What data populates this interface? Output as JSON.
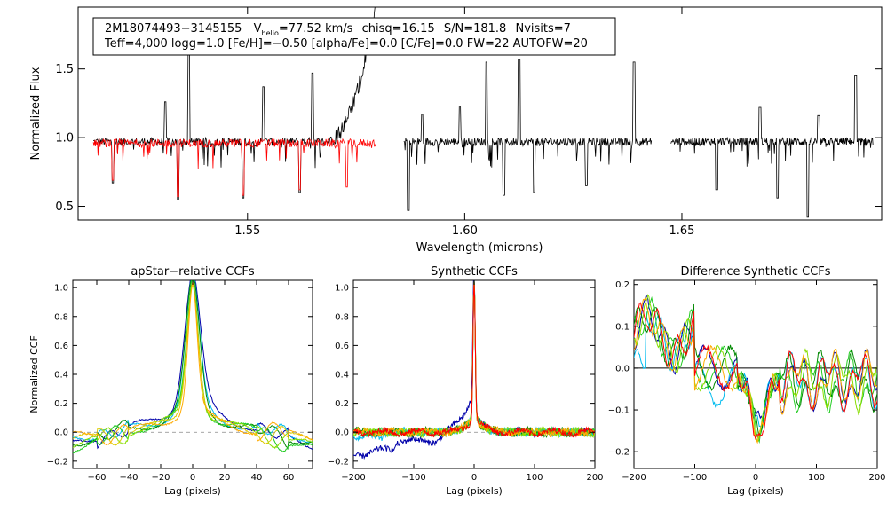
{
  "header": {
    "id": "2M18074493−3145155",
    "vhelio_prefix": "V",
    "vhelio_sub": "helio",
    "vhelio_value": "=77.52 km/s",
    "chisq": "chisq=16.15",
    "snr": "S/N=181.8",
    "nvisits": "Nvisits=7",
    "line2": "Teff=4,000 logg=1.0 [Fe/H]=−0.50 [alpha/Fe]=0.0 [C/Fe]=0.0 FW=22 AUTOFW=20"
  },
  "colors": {
    "observed": "#000000",
    "model": "#ff0000"
  },
  "chart_data": [
    {
      "type": "line",
      "title": "",
      "xlabel": "Wavelength (microns)",
      "ylabel": "Normalized Flux",
      "xlim": [
        1.511,
        1.696
      ],
      "ylim": [
        0.4,
        1.95
      ],
      "xticks": [
        1.55,
        1.6,
        1.65
      ],
      "xtick_labels": [
        "1.55",
        "1.60",
        "1.65"
      ],
      "yticks": [
        0.5,
        1.0,
        1.5
      ],
      "ytick_labels": [
        "0.5",
        "1.0",
        "1.5"
      ],
      "chips": [
        [
          1.5145,
          1.5795
        ],
        [
          1.586,
          1.643
        ],
        [
          1.6475,
          1.694
        ]
      ],
      "series": [
        {
          "name": "observed spectrum",
          "color": "#000000",
          "baseline": 0.97
        },
        {
          "name": "synthetic model",
          "color": "#ff0000",
          "baseline": 0.96
        }
      ],
      "emission_spikes": [
        {
          "x": 1.531,
          "y": 1.26
        },
        {
          "x": 1.5365,
          "y": 1.65
        },
        {
          "x": 1.5537,
          "y": 1.37
        },
        {
          "x": 1.565,
          "y": 1.47
        },
        {
          "x": 1.5902,
          "y": 1.17
        },
        {
          "x": 1.5989,
          "y": 1.23
        },
        {
          "x": 1.605,
          "y": 1.55
        },
        {
          "x": 1.6125,
          "y": 1.57
        },
        {
          "x": 1.639,
          "y": 1.55
        },
        {
          "x": 1.668,
          "y": 1.22
        },
        {
          "x": 1.6815,
          "y": 1.16
        },
        {
          "x": 1.69,
          "y": 1.45
        }
      ],
      "absorption_dips": [
        {
          "x": 1.519,
          "y": 0.67
        },
        {
          "x": 1.534,
          "y": 0.55
        },
        {
          "x": 1.549,
          "y": 0.56
        },
        {
          "x": 1.562,
          "y": 0.6
        },
        {
          "x": 1.5728,
          "y": 0.62
        },
        {
          "x": 1.587,
          "y": 0.47
        },
        {
          "x": 1.609,
          "y": 0.58
        },
        {
          "x": 1.616,
          "y": 0.6
        },
        {
          "x": 1.628,
          "y": 0.65
        },
        {
          "x": 1.658,
          "y": 0.62
        },
        {
          "x": 1.672,
          "y": 0.56
        },
        {
          "x": 1.679,
          "y": 0.42
        }
      ],
      "rising_segment": {
        "x_start": 1.569,
        "x_end": 1.5795,
        "y_start": 1.0,
        "y_end": 1.95
      }
    },
    {
      "type": "line",
      "title": "apStar−relative CCFs",
      "xlabel": "Lag (pixels)",
      "ylabel": "Normalized CCF",
      "xlim": [
        -75,
        75
      ],
      "ylim": [
        -0.25,
        1.05
      ],
      "xticks": [
        -60,
        -40,
        -20,
        0,
        20,
        40,
        60
      ],
      "xtick_labels": [
        "−60",
        "−40",
        "−20",
        "0",
        "20",
        "40",
        "60"
      ],
      "yticks": [
        -0.2,
        0.0,
        0.2,
        0.4,
        0.6,
        0.8,
        1.0
      ],
      "ytick_labels": [
        "−0.2",
        "0.0",
        "0.2",
        "0.4",
        "0.6",
        "0.8",
        "1.0"
      ],
      "series": [
        {
          "name": "visit 1",
          "color": "#0000aa",
          "wing": 0.14,
          "width": 7,
          "tail": -0.1
        },
        {
          "name": "visit 2",
          "color": "#00bbee",
          "wing": 0.1,
          "width": 6,
          "tail": -0.05
        },
        {
          "name": "visit 3",
          "color": "#008800",
          "wing": 0.09,
          "width": 6,
          "tail": -0.08
        },
        {
          "name": "visit 4",
          "color": "#22cc22",
          "wing": 0.07,
          "width": 5,
          "tail": -0.12
        },
        {
          "name": "visit 5",
          "color": "#88dd00",
          "wing": 0.06,
          "width": 5,
          "tail": -0.1
        },
        {
          "name": "visit 6",
          "color": "#ddcc00",
          "wing": 0.05,
          "width": 5,
          "tail": -0.06
        },
        {
          "name": "visit 7",
          "color": "#ffaa00",
          "wing": 0.05,
          "width": 4,
          "tail": -0.03
        }
      ]
    },
    {
      "type": "line",
      "title": "Synthetic CCFs",
      "xlabel": "Lag (pixels)",
      "ylabel": "",
      "xlim": [
        -200,
        200
      ],
      "ylim": [
        -0.25,
        1.05
      ],
      "xticks": [
        -200,
        -100,
        0,
        100,
        200
      ],
      "xtick_labels": [
        "−200",
        "−100",
        "0",
        "100",
        "200"
      ],
      "yticks": [
        -0.2,
        0.0,
        0.2,
        0.4,
        0.6,
        0.8,
        1.0
      ],
      "ytick_labels": [
        "−0.2",
        "0.0",
        "0.2",
        "0.4",
        "0.6",
        "0.8",
        "1.0"
      ],
      "series": [
        {
          "name": "visit 1",
          "color": "#0000aa"
        },
        {
          "name": "visit 2",
          "color": "#00bbee"
        },
        {
          "name": "visit 3",
          "color": "#008800"
        },
        {
          "name": "visit 4",
          "color": "#22cc22"
        },
        {
          "name": "visit 5",
          "color": "#88dd00"
        },
        {
          "name": "visit 6",
          "color": "#ffaa00"
        },
        {
          "name": "visit 7",
          "color": "#ff0000"
        }
      ]
    },
    {
      "type": "line",
      "title": "Difference Synthetic CCFs",
      "xlabel": "Lag (pixels)",
      "ylabel": "",
      "xlim": [
        -200,
        200
      ],
      "ylim": [
        -0.24,
        0.21
      ],
      "xticks": [
        -200,
        -100,
        0,
        100,
        200
      ],
      "xtick_labels": [
        "−200",
        "−100",
        "0",
        "100",
        "200"
      ],
      "yticks": [
        -0.2,
        -0.1,
        0.0,
        0.1,
        0.2
      ],
      "ytick_labels": [
        "−0.2",
        "−0.1",
        "0.0",
        "0.1",
        "0.2"
      ],
      "series": [
        {
          "name": "visit 1",
          "color": "#0000aa"
        },
        {
          "name": "visit 2",
          "color": "#00bbee"
        },
        {
          "name": "visit 3",
          "color": "#008800"
        },
        {
          "name": "visit 4",
          "color": "#22cc22"
        },
        {
          "name": "visit 5",
          "color": "#88dd00"
        },
        {
          "name": "visit 6",
          "color": "#ffaa00"
        },
        {
          "name": "visit 7",
          "color": "#ff0000"
        }
      ]
    }
  ]
}
